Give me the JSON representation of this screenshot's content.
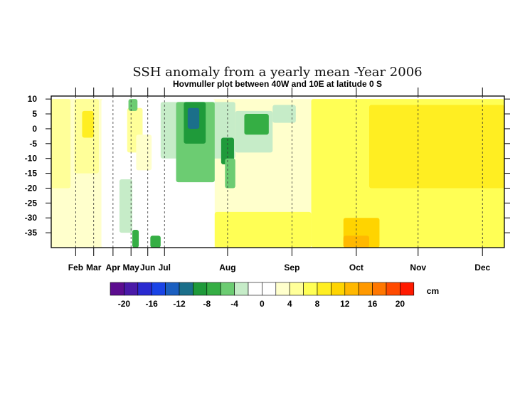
{
  "chart_data": {
    "type": "heatmap",
    "title": "SSH anomaly from a yearly mean -Year 2006",
    "subtitle": "Hovmuller plot between 40W and 10E at latitude 0 S",
    "y_ticks": [
      10,
      5,
      0,
      -5,
      -10,
      -15,
      -20,
      -25,
      -30,
      -35
    ],
    "ylim": [
      -40,
      11
    ],
    "x_range_days": [
      13,
      365
    ],
    "x_ticks": [
      {
        "label": "Feb",
        "day": 32
      },
      {
        "label": "Mar",
        "day": 46
      },
      {
        "label": "Apr",
        "day": 61
      },
      {
        "label": "May",
        "day": 75
      },
      {
        "label": "Jun",
        "day": 88
      },
      {
        "label": "Jul",
        "day": 101
      },
      {
        "label": "Aug",
        "day": 150
      },
      {
        "label": "Sep",
        "day": 200
      },
      {
        "label": "Oct",
        "day": 250
      },
      {
        "label": "Nov",
        "day": 298
      },
      {
        "label": "Dec",
        "day": 348
      }
    ],
    "colorbar": {
      "unit": "cm",
      "labels": [
        "-20",
        "-16",
        "-12",
        "-8",
        "-4",
        "0",
        "4",
        "8",
        "12",
        "16",
        "20"
      ],
      "colors": [
        "#5c0d8f",
        "#4a1aa8",
        "#2a2ad0",
        "#1a44e6",
        "#1b5fc0",
        "#1b6f8a",
        "#1f9a3a",
        "#35ae44",
        "#6ccc72",
        "#c6ecc8",
        "#ffffff",
        "#ffffff",
        "#ffffcc",
        "#ffff99",
        "#ffff55",
        "#ffee22",
        "#ffd400",
        "#ffb800",
        "#ff9900",
        "#ff7700",
        "#ff4a00",
        "#ff1a00"
      ]
    },
    "regions": [
      {
        "x": [
          13,
          365
        ],
        "y": [
          -40,
          10
        ],
        "value": 3
      },
      {
        "x": [
          13,
          28
        ],
        "y": [
          -20,
          10
        ],
        "value": 5
      },
      {
        "x": [
          31,
          50
        ],
        "y": [
          -15,
          10
        ],
        "value": 5
      },
      {
        "x": [
          37,
          46
        ],
        "y": [
          -3,
          6
        ],
        "value": 8
      },
      {
        "x": [
          52,
          140
        ],
        "y": [
          -40,
          10
        ],
        "value": 0
      },
      {
        "x": [
          66,
          76
        ],
        "y": [
          -35,
          -17
        ],
        "value": -3
      },
      {
        "x": [
          72,
          84
        ],
        "y": [
          -8,
          7
        ],
        "value": 4
      },
      {
        "x": [
          79,
          91
        ],
        "y": [
          -14,
          -2
        ],
        "value": 3
      },
      {
        "x": [
          73,
          80
        ],
        "y": [
          6,
          10
        ],
        "value": -6
      },
      {
        "x": [
          76,
          81
        ],
        "y": [
          -40,
          -34
        ],
        "value": -8
      },
      {
        "x": [
          90,
          98
        ],
        "y": [
          -40,
          -36
        ],
        "value": -7
      },
      {
        "x": [
          98,
          156
        ],
        "y": [
          -10,
          9
        ],
        "value": -4
      },
      {
        "x": [
          110,
          140
        ],
        "y": [
          -18,
          9
        ],
        "value": -6
      },
      {
        "x": [
          116,
          133
        ],
        "y": [
          -5,
          9
        ],
        "value": -9
      },
      {
        "x": [
          119,
          128
        ],
        "y": [
          0,
          7
        ],
        "value": -11
      },
      {
        "x": [
          145,
          155
        ],
        "y": [
          -12,
          -3
        ],
        "value": -10
      },
      {
        "x": [
          148,
          156
        ],
        "y": [
          -20,
          -10
        ],
        "value": -5
      },
      {
        "x": [
          156,
          185
        ],
        "y": [
          -8,
          6
        ],
        "value": -3
      },
      {
        "x": [
          163,
          182
        ],
        "y": [
          -2,
          5
        ],
        "value": -7
      },
      {
        "x": [
          185,
          203
        ],
        "y": [
          2,
          8
        ],
        "value": -3
      },
      {
        "x": [
          140,
          215
        ],
        "y": [
          -40,
          -28
        ],
        "value": 6
      },
      {
        "x": [
          215,
          365
        ],
        "y": [
          -40,
          10
        ],
        "value": 7
      },
      {
        "x": [
          260,
          365
        ],
        "y": [
          -20,
          8
        ],
        "value": 8
      },
      {
        "x": [
          240,
          268
        ],
        "y": [
          -40,
          -30
        ],
        "value": 11
      },
      {
        "x": [
          240,
          260
        ],
        "y": [
          -40,
          -36
        ],
        "value": 13
      }
    ]
  }
}
